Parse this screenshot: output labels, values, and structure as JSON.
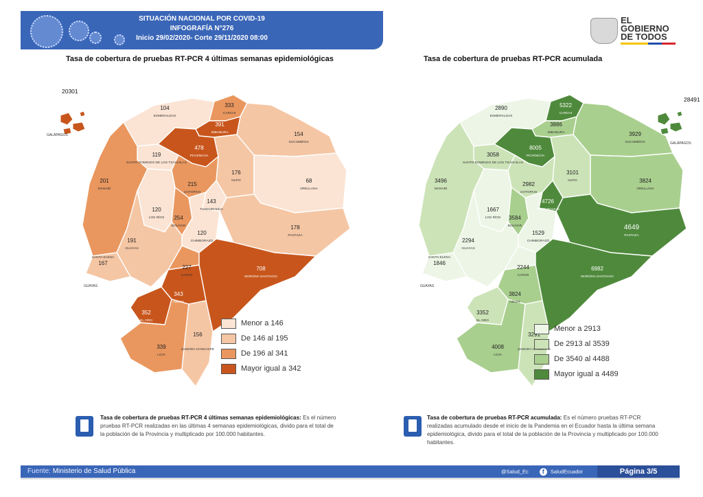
{
  "header": {
    "line1": "SITUACIÓN NACIONAL POR COVID-19",
    "line2": "INFOGRAFÍA N°276",
    "line3": "Inicio 29/02/2020- Corte 29/11/2020 08:00"
  },
  "logo": {
    "line1": "EL",
    "line2": "GOBIERNO",
    "line3": "DE TODOS"
  },
  "left_map": {
    "title": "Tasa de cobertura de pruebas RT-PCR 4 últimas semanas epidemiológicas",
    "legend": [
      {
        "label": "Menor a 146",
        "color": "#fbe4d4"
      },
      {
        "label": "De 146 al 195",
        "color": "#f5c6a4"
      },
      {
        "label": "De 196 al 341",
        "color": "#e9975f"
      },
      {
        "label": "Mayor igual a 342",
        "color": "#c8561c"
      }
    ],
    "provinces": [
      {
        "name": "ESMERALDAS",
        "value": "104",
        "color": "#fbe4d4"
      },
      {
        "name": "CARCHI",
        "value": "333",
        "color": "#e9975f"
      },
      {
        "name": "IMBABURA",
        "value": "391",
        "color": "#c8561c"
      },
      {
        "name": "PICHINCHA",
        "value": "478",
        "color": "#c8561c"
      },
      {
        "name": "SUCUMBÍOS",
        "value": "154",
        "color": "#f5c6a4"
      },
      {
        "name": "SANTO DOMINGO DE LOS TSÁCHILAS",
        "value": "119",
        "color": "#fbe4d4"
      },
      {
        "name": "MANABÍ",
        "value": "201",
        "color": "#e9975f"
      },
      {
        "name": "NAPO",
        "value": "176",
        "color": "#f5c6a4"
      },
      {
        "name": "ORELLANA",
        "value": "68",
        "color": "#fbe4d4"
      },
      {
        "name": "COTOPAXI",
        "value": "215",
        "color": "#e9975f"
      },
      {
        "name": "LOS RÍOS",
        "value": "120",
        "color": "#fbe4d4"
      },
      {
        "name": "TUNGURAHUA",
        "value": "143",
        "color": "#fbe4d4"
      },
      {
        "name": "BOLÍVAR",
        "value": "254",
        "color": "#e9975f"
      },
      {
        "name": "CHIMBORAZO",
        "value": "120",
        "color": "#fbe4d4"
      },
      {
        "name": "PASTAZA",
        "value": "178",
        "color": "#f5c6a4"
      },
      {
        "name": "GUAYAS",
        "value": "191",
        "color": "#f5c6a4"
      },
      {
        "name": "SANTA ELENA",
        "value": "167",
        "color": "#f5c6a4"
      },
      {
        "name": "CAÑAR",
        "value": "227",
        "color": "#e9975f"
      },
      {
        "name": "MORONA SANTIAGO",
        "value": "708",
        "color": "#c8561c"
      },
      {
        "name": "AZUAY",
        "value": "343",
        "color": "#c8561c"
      },
      {
        "name": "EL ORO",
        "value": "352",
        "color": "#c8561c"
      },
      {
        "name": "LOJA",
        "value": "339",
        "color": "#e9975f"
      },
      {
        "name": "ZAMORA CHINCHIPE",
        "value": "156",
        "color": "#f5c6a4"
      },
      {
        "name": "GALÁPAGOS",
        "value": "20301",
        "color": "#c8561c"
      }
    ],
    "extra_labels": [
      "GUAYAS",
      "GALÁPAGOS"
    ]
  },
  "right_map": {
    "title": "Tasa de cobertura de pruebas RT-PCR acumulada",
    "legend": [
      {
        "label": "Menor a 2913",
        "color": "#edf5e6"
      },
      {
        "label": "De 2913 al 3539",
        "color": "#cce3b8"
      },
      {
        "label": "De 3540 al 4488",
        "color": "#a9cf8e"
      },
      {
        "label": "Mayor igual a 4489",
        "color": "#4f8a3c"
      }
    ],
    "provinces": [
      {
        "name": "ESMERALDAS",
        "value": "2890",
        "color": "#edf5e6"
      },
      {
        "name": "CARCHI",
        "value": "5322",
        "color": "#4f8a3c"
      },
      {
        "name": "IMBABURA",
        "value": "3886",
        "color": "#a9cf8e"
      },
      {
        "name": "PICHINCHA",
        "value": "8005",
        "color": "#4f8a3c"
      },
      {
        "name": "SUCUMBÍOS",
        "value": "3929",
        "color": "#a9cf8e"
      },
      {
        "name": "SANTO DOMINGO DE LOS TSÁCHILAS",
        "value": "3058",
        "color": "#cce3b8"
      },
      {
        "name": "MANABÍ",
        "value": "3496",
        "color": "#cce3b8"
      },
      {
        "name": "NAPO",
        "value": "3101",
        "color": "#cce3b8"
      },
      {
        "name": "ORELLANA",
        "value": "3824",
        "color": "#a9cf8e"
      },
      {
        "name": "COTOPAXI",
        "value": "2982",
        "color": "#cce3b8"
      },
      {
        "name": "LOS RÍOS",
        "value": "1667",
        "color": "#edf5e6"
      },
      {
        "name": "TUNGURAHUA",
        "value": "4726",
        "color": "#4f8a3c"
      },
      {
        "name": "BOLÍVAR",
        "value": "3584",
        "color": "#a9cf8e"
      },
      {
        "name": "CHIMBORAZO",
        "value": "1529",
        "color": "#edf5e6"
      },
      {
        "name": "PASTAZA",
        "value": "4649",
        "color": "#4f8a3c"
      },
      {
        "name": "GUAYAS",
        "value": "2294",
        "color": "#edf5e6"
      },
      {
        "name": "SANTA ELENA",
        "value": "1846",
        "color": "#edf5e6"
      },
      {
        "name": "CAÑAR",
        "value": "2244",
        "color": "#edf5e6"
      },
      {
        "name": "MORONA SANTIAGO",
        "value": "6982",
        "color": "#4f8a3c"
      },
      {
        "name": "AZUAY",
        "value": "3824",
        "color": "#a9cf8e"
      },
      {
        "name": "EL ORO",
        "value": "3352",
        "color": "#cce3b8"
      },
      {
        "name": "LOJA",
        "value": "4008",
        "color": "#a9cf8e"
      },
      {
        "name": "ZAMORA CHINCHIPE",
        "value": "3291",
        "color": "#cce3b8"
      },
      {
        "name": "GALÁPAGOS",
        "value": "28491",
        "color": "#4f8a3c"
      }
    ],
    "extra_labels": [
      "GUAYAS",
      "GALÁPAGOS"
    ]
  },
  "notes": {
    "left_title": "Tasa de cobertura de pruebas RT-PCR 4 últimas semanas epidemiológicas:",
    "left_body": "Es el número pruebas RT-PCR realizadas en las últimas 4 semanas epidemiológicas, divido para el total de la población de la Provincia y multiplicado por 100.000 habitantes.",
    "right_title": "Tasa de cobertura de pruebas RT-PCR acumulada:",
    "right_body": "Es el número pruebas RT-PCR realizadas acumulado desde el inicio de la Pandemia en el Ecuador hasta la última semana epidemiológica, divido para el total de la población de la Provincia y multiplicado por 100.000 habitantes."
  },
  "footer": {
    "source_label": "Fuente:",
    "source_value": "Ministerio de Salud Pública",
    "twitter": "@Salud_Ec",
    "facebook": "SaludEcuador",
    "page": "Página 3/5"
  }
}
